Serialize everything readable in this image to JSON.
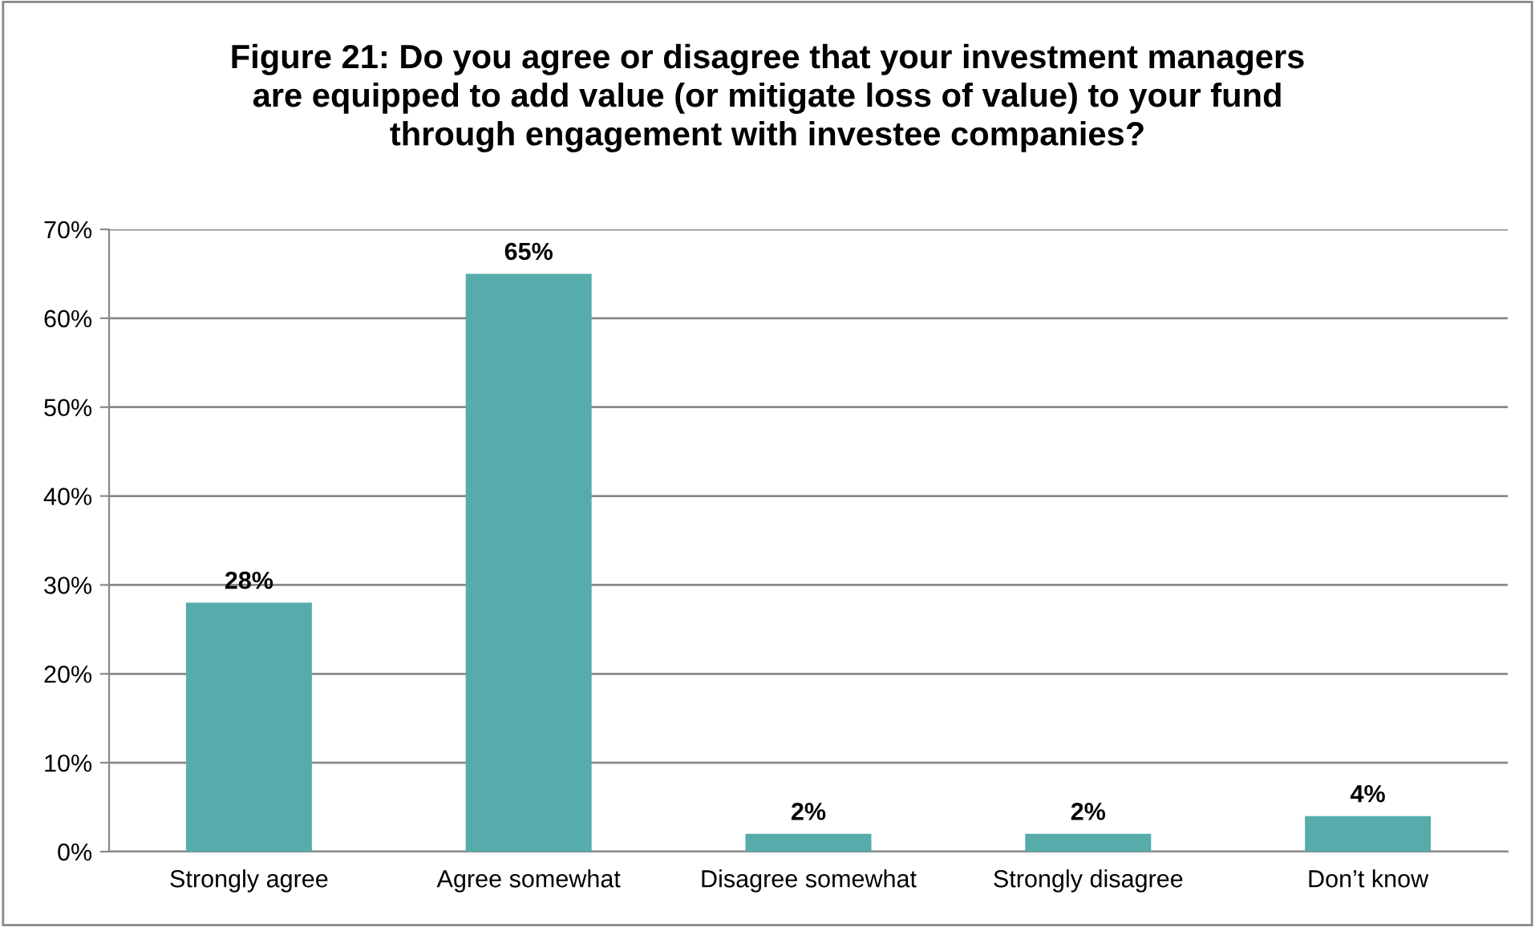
{
  "chart_data": {
    "type": "bar",
    "title": "Figure 21: Do you agree or disagree that your investment managers\nare equipped to add value (or mitigate loss of value) to your fund\nthrough engagement with investee companies?",
    "categories": [
      "Strongly agree",
      "Agree somewhat",
      "Disagree somewhat",
      "Strongly disagree",
      "Don’t know"
    ],
    "values": [
      28,
      65,
      2,
      2,
      4
    ],
    "value_labels": [
      "28%",
      "65%",
      "2%",
      "2%",
      "4%"
    ],
    "color": "#55acab",
    "ylim": [
      0,
      70
    ],
    "yticks": [
      {
        "value": 0,
        "label": "0%"
      },
      {
        "value": 10,
        "label": "10%"
      },
      {
        "value": 20,
        "label": "20%"
      },
      {
        "value": 30,
        "label": "30%"
      },
      {
        "value": 40,
        "label": "40%"
      },
      {
        "value": 50,
        "label": "50%"
      },
      {
        "value": 60,
        "label": "60%"
      },
      {
        "value": 70,
        "label": "70%"
      }
    ],
    "grid": "y",
    "legend": false
  }
}
